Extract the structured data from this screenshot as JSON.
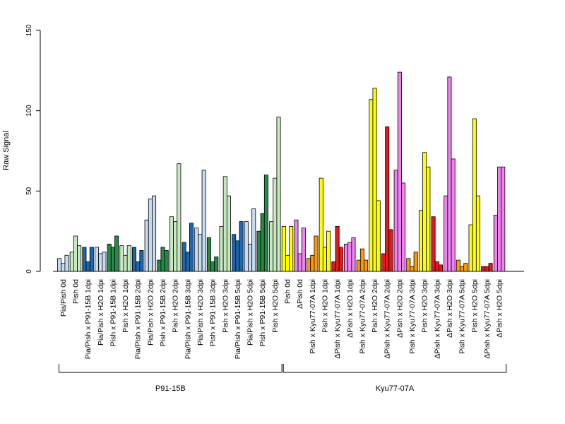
{
  "chart_data": {
    "type": "bar",
    "title": "",
    "xlabel": "",
    "ylabel": "Raw Signal",
    "ylim": [
      0,
      150
    ],
    "yticks": [
      0,
      50,
      100,
      150
    ],
    "grid": false,
    "legend": "none",
    "colors": {
      "light_blue": "#c6dbef",
      "light_green": "#c7e9c0",
      "dark_blue": "#2166ac",
      "dark_green": "#238b45",
      "yellow": "#ffff00",
      "violet": "#ee82ee",
      "orange": "#ff9900",
      "red": "#e31a1c"
    },
    "groups": [
      {
        "label": "Pia/Pish 0d",
        "color": "light_blue",
        "values": [
          8,
          5,
          10
        ]
      },
      {
        "label": "Pish 0d",
        "color": "light_green",
        "values": [
          12,
          22,
          16
        ]
      },
      {
        "label": "Pia/Pish x P91-15B 1dpi",
        "color": "dark_blue",
        "values": [
          15,
          6,
          15
        ]
      },
      {
        "label": "Pia/Pish x H2O 1dpi",
        "color": "light_blue",
        "values": [
          15,
          11,
          12
        ]
      },
      {
        "label": "Pish x P91-15B 1dpi",
        "color": "dark_green",
        "values": [
          17,
          15,
          22
        ]
      },
      {
        "label": "Pish x H2O 1dpi",
        "color": "light_green",
        "values": [
          16,
          10,
          16
        ]
      },
      {
        "label": "Pia/Pish x P91-15B 2dpi",
        "color": "dark_blue",
        "values": [
          15,
          6,
          13
        ]
      },
      {
        "label": "Pia/Pish x H2O 2dpi",
        "color": "light_blue",
        "values": [
          32,
          45,
          47
        ]
      },
      {
        "label": "Pish x P91-15B 2dpi",
        "color": "dark_green",
        "values": [
          7,
          15,
          13
        ]
      },
      {
        "label": "Pish x H2O 2dpi",
        "color": "light_green",
        "values": [
          34,
          31,
          67
        ]
      },
      {
        "label": "Pia/Pish x P91-15B 3dpi",
        "color": "dark_blue",
        "values": [
          18,
          12,
          30
        ]
      },
      {
        "label": "Pia/Pish x H2O 3dpi",
        "color": "light_blue",
        "values": [
          27,
          23,
          63
        ]
      },
      {
        "label": "Pish x P91-15B 3dpi",
        "color": "dark_green",
        "values": [
          21,
          6,
          9
        ]
      },
      {
        "label": "Pish x H2O 3dpi",
        "color": "light_green",
        "values": [
          28,
          59,
          47
        ]
      },
      {
        "label": "Pia/Pish x P91-15B 5dpi",
        "color": "dark_blue",
        "values": [
          23,
          19,
          31
        ]
      },
      {
        "label": "Pia/Pish x H2O 5dpi",
        "color": "light_blue",
        "values": [
          31,
          17,
          39
        ]
      },
      {
        "label": "Pish x P91-15B 5dpi",
        "color": "dark_green",
        "values": [
          25,
          36,
          60
        ]
      },
      {
        "label": "Pish x H2O 5dpi",
        "color": "light_green",
        "values": [
          31,
          58,
          96
        ]
      },
      {
        "label": "Pish 0d",
        "color": "yellow",
        "values": [
          28,
          10,
          28
        ]
      },
      {
        "label": "ΔPish 0d",
        "color": "violet",
        "values": [
          32,
          11,
          27
        ]
      },
      {
        "label": "Pish x Kyu77-07A 1dpi",
        "color": "orange",
        "values": [
          8,
          10,
          22
        ]
      },
      {
        "label": "Pish x H2O 1dpi",
        "color": "yellow",
        "values": [
          58,
          15,
          25
        ]
      },
      {
        "label": "ΔPish x Kyu77-07A 1dpi",
        "color": "red",
        "values": [
          6,
          28,
          15
        ]
      },
      {
        "label": "ΔPish x H2O 1dpi",
        "color": "violet",
        "values": [
          17,
          18,
          21
        ]
      },
      {
        "label": "Pish x Kyu77-07A 2dpi",
        "color": "orange",
        "values": [
          7,
          14,
          7
        ]
      },
      {
        "label": "Pish x H2O 2dpi",
        "color": "yellow",
        "values": [
          107,
          114,
          44
        ]
      },
      {
        "label": "ΔPish x Kyu77-07A 2dpi",
        "color": "red",
        "values": [
          11,
          90,
          26
        ]
      },
      {
        "label": "ΔPish x H2O 2dpi",
        "color": "violet",
        "values": [
          63,
          124,
          55
        ]
      },
      {
        "label": "Pish x Kyu77-07A 3dpi",
        "color": "orange",
        "values": [
          8,
          3,
          12
        ]
      },
      {
        "label": "Pish x H2O 3dpi",
        "color": "yellow",
        "values": [
          38,
          74,
          65
        ]
      },
      {
        "label": "ΔPish x Kyu77-07A 3dpi",
        "color": "red",
        "values": [
          34,
          6,
          4
        ]
      },
      {
        "label": "ΔPish x H2O 3dpi",
        "color": "violet",
        "values": [
          47,
          121,
          70
        ]
      },
      {
        "label": "Pish x Kyu77-07A 5dpi",
        "color": "orange",
        "values": [
          7,
          3,
          5
        ]
      },
      {
        "label": "Pish x H2O 5dpi",
        "color": "yellow",
        "values": [
          29,
          95,
          47
        ]
      },
      {
        "label": "ΔPish x Kyu77-07A 5dpi",
        "color": "red",
        "values": [
          3,
          3,
          5
        ]
      },
      {
        "label": "ΔPish x H2O 5dpi",
        "color": "violet",
        "values": [
          35,
          65,
          65
        ]
      }
    ],
    "sections": [
      {
        "label": "P91-15B",
        "from_group": 0,
        "to_group": 17
      },
      {
        "label": "Kyu77-07A",
        "from_group": 18,
        "to_group": 35
      }
    ]
  }
}
